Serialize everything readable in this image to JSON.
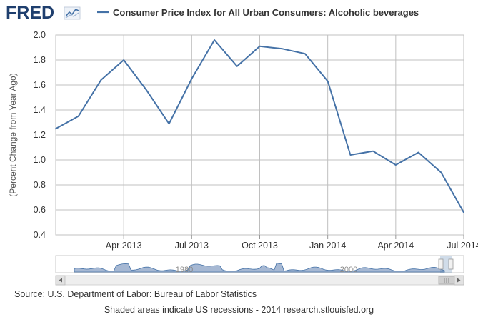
{
  "header": {
    "logo_text": "FRED",
    "logo_icon": "line-chart-icon"
  },
  "chart_data": {
    "type": "line",
    "title": "Consumer Price Index for All Urban Consumers: Alcoholic beverages",
    "xlabel": "",
    "ylabel": "(Percent Change from Year Ago)",
    "ylim": [
      0.4,
      2.0
    ],
    "yticks": [
      "0.4",
      "0.6",
      "0.8",
      "1.0",
      "1.2",
      "1.4",
      "1.6",
      "1.8",
      "2.0"
    ],
    "xticks": [
      {
        "label": "Apr 2013",
        "date": "2013-04"
      },
      {
        "label": "Jul 2013",
        "date": "2013-07"
      },
      {
        "label": "Oct 2013",
        "date": "2013-10"
      },
      {
        "label": "Jan 2014",
        "date": "2014-01"
      },
      {
        "label": "Apr 2014",
        "date": "2014-04"
      },
      {
        "label": "Jul 2014",
        "date": "2014-07"
      }
    ],
    "xlim": [
      "2013-01",
      "2014-07"
    ],
    "grid": true,
    "series": [
      {
        "name": "Consumer Price Index for All Urban Consumers: Alcoholic beverages",
        "color": "#4572a7",
        "x": [
          "2013-01",
          "2013-02",
          "2013-03",
          "2013-04",
          "2013-05",
          "2013-06",
          "2013-07",
          "2013-08",
          "2013-09",
          "2013-10",
          "2013-11",
          "2013-12",
          "2014-01",
          "2014-02",
          "2014-03",
          "2014-04",
          "2014-05",
          "2014-06",
          "2014-07"
        ],
        "values": [
          1.25,
          1.35,
          1.64,
          1.8,
          1.56,
          1.29,
          1.65,
          1.96,
          1.75,
          1.91,
          1.89,
          1.85,
          1.63,
          1.04,
          1.07,
          0.96,
          1.06,
          0.9,
          0.58
        ]
      }
    ]
  },
  "navigator": {
    "labels": [
      "1980",
      "2000"
    ],
    "scroll_left_icon": "arrow-left-icon",
    "scroll_right_icon": "arrow-right-icon"
  },
  "footer": {
    "source": "Source: U.S. Department of Labor: Bureau of Labor Statistics",
    "notes": "Shaded areas indicate US recessions - 2014 research.stlouisfed.org"
  },
  "colors": {
    "line": "#4572a7",
    "grid": "#c0c0c0",
    "navigator_fill": "#a6b8d3",
    "navigator_stroke": "#4572a7",
    "logo": "#1f3f6e"
  }
}
